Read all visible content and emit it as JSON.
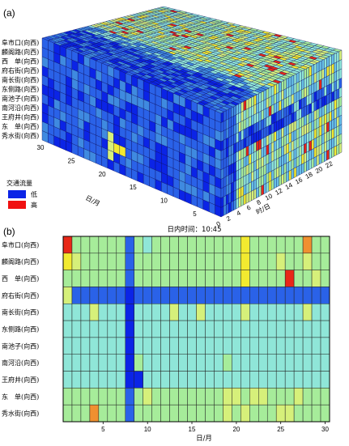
{
  "chart_data": [
    {
      "type": "heatmap",
      "panel_label": "(a)",
      "style": "3d-cube",
      "roads": [
        "阜市口(向西)",
        "麟阁路(向西)",
        "西　单(向西)",
        "府右街(向西)",
        "南长街(向西)",
        "东侧路(向西)",
        "南池子(向西)",
        "南河沿(向西)",
        "王府井(向西)",
        "东　单(向西)",
        "秀水街(向西)"
      ],
      "day_axis": {
        "label": "日/月",
        "ticks": [
          "5",
          "10",
          "15",
          "20",
          "25",
          "30"
        ],
        "range": [
          1,
          30
        ]
      },
      "time_axis": {
        "label": "时/日",
        "ticks": [
          "0",
          "2",
          "4",
          "6",
          "8",
          "10",
          "12",
          "14",
          "16",
          "18",
          "20",
          "22"
        ],
        "range": [
          0,
          24
        ]
      },
      "legend": {
        "title": "交通流量",
        "items": [
          {
            "label": "低",
            "color": "#0b24e6"
          },
          {
            "label": "高",
            "color": "#f01010"
          }
        ]
      }
    },
    {
      "type": "heatmap",
      "panel_label": "(b)",
      "title": "日内时间：10:45",
      "xlabel": "日/月",
      "x_ticks": [
        5,
        10,
        15,
        20,
        25,
        30
      ],
      "x_range": [
        1,
        30
      ],
      "rows": [
        "阜市口(向西)",
        "麟阁路(向西)",
        "西　单(向西)",
        "府右街(向西)",
        "南长街(向西)",
        "东侧路(向西)",
        "南池子(向西)",
        "南河沿(向西)",
        "王府井(向西)",
        "东　单(向西)",
        "秀水街(向西)"
      ],
      "value_scale": "0 = low (blue) … 9 = high (red)",
      "values": [
        [
          9,
          5,
          5,
          5,
          5,
          5,
          5,
          1,
          5,
          4,
          5,
          5,
          5,
          5,
          5,
          5,
          5,
          5,
          5,
          5,
          7,
          5,
          5,
          5,
          5,
          5,
          5,
          8,
          5,
          5
        ],
        [
          7,
          6,
          5,
          5,
          5,
          5,
          5,
          1,
          5,
          5,
          5,
          5,
          5,
          5,
          5,
          5,
          5,
          5,
          5,
          5,
          7,
          5,
          5,
          5,
          6,
          5,
          5,
          6,
          5,
          5
        ],
        [
          5,
          5,
          5,
          5,
          5,
          5,
          5,
          1,
          5,
          5,
          5,
          5,
          5,
          5,
          5,
          5,
          5,
          5,
          5,
          5,
          7,
          5,
          5,
          5,
          5,
          9,
          5,
          5,
          6,
          5
        ],
        [
          6,
          1,
          1,
          1,
          1,
          1,
          1,
          0,
          1,
          1,
          1,
          1,
          1,
          1,
          1,
          1,
          1,
          1,
          1,
          1,
          1,
          1,
          1,
          1,
          1,
          1,
          1,
          1,
          1,
          1
        ],
        [
          4,
          4,
          4,
          6,
          4,
          4,
          4,
          0,
          4,
          4,
          4,
          4,
          6,
          4,
          4,
          6,
          4,
          4,
          4,
          4,
          6,
          4,
          4,
          4,
          4,
          4,
          4,
          6,
          4,
          4
        ],
        [
          4,
          4,
          4,
          4,
          4,
          4,
          4,
          0,
          4,
          4,
          4,
          4,
          4,
          4,
          4,
          4,
          4,
          4,
          4,
          4,
          4,
          4,
          4,
          4,
          4,
          4,
          4,
          4,
          4,
          4
        ],
        [
          4,
          4,
          4,
          4,
          4,
          4,
          4,
          0,
          4,
          4,
          4,
          4,
          4,
          4,
          4,
          4,
          4,
          4,
          4,
          4,
          4,
          4,
          4,
          4,
          4,
          4,
          4,
          4,
          4,
          4
        ],
        [
          4,
          4,
          4,
          4,
          4,
          4,
          4,
          0,
          5,
          4,
          4,
          4,
          4,
          4,
          4,
          4,
          4,
          4,
          5,
          4,
          4,
          4,
          4,
          4,
          4,
          4,
          4,
          4,
          4,
          4
        ],
        [
          4,
          4,
          4,
          4,
          4,
          4,
          4,
          0,
          0,
          4,
          4,
          4,
          4,
          4,
          4,
          4,
          4,
          4,
          4,
          4,
          4,
          4,
          4,
          4,
          4,
          4,
          4,
          4,
          4,
          4
        ],
        [
          5,
          5,
          5,
          5,
          5,
          5,
          5,
          1,
          5,
          6,
          5,
          5,
          5,
          5,
          5,
          5,
          5,
          5,
          6,
          6,
          5,
          6,
          6,
          5,
          5,
          5,
          6,
          5,
          5,
          5
        ],
        [
          5,
          5,
          5,
          8,
          5,
          5,
          5,
          1,
          5,
          5,
          5,
          5,
          5,
          5,
          5,
          5,
          5,
          5,
          6,
          5,
          6,
          5,
          5,
          5,
          6,
          6,
          5,
          5,
          5,
          5
        ]
      ],
      "colorscale": [
        "#0b24e6",
        "#2a62e8",
        "#3f8ae0",
        "#67c0e8",
        "#8fe6d8",
        "#a6ec9a",
        "#d6f07a",
        "#f2ea30",
        "#f09030",
        "#e82818"
      ]
    }
  ]
}
